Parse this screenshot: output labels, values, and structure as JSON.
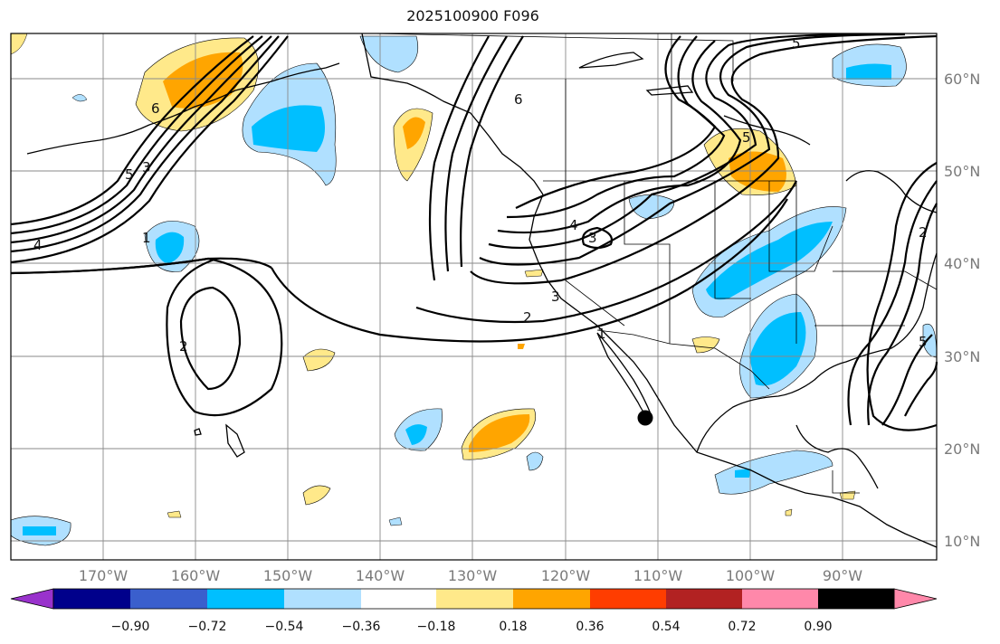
{
  "title": "2025100900 F096",
  "longitude_labels": [
    "170°W",
    "160°W",
    "150°W",
    "140°W",
    "130°W",
    "120°W",
    "110°W",
    "100°W",
    "90°W"
  ],
  "latitude_labels": [
    "60°N",
    "50°N",
    "40°N",
    "30°N",
    "20°N",
    "10°N"
  ],
  "contour_labels": [
    "4",
    "5",
    "3",
    "6",
    "6",
    "1",
    "2",
    "4",
    "3",
    "3",
    "2",
    "1",
    "5",
    "5",
    "2",
    "5"
  ],
  "colorbar": {
    "ticks": [
      "−0.90",
      "−0.72",
      "−0.54",
      "−0.36",
      "−0.18",
      "0.18",
      "0.36",
      "0.54",
      "0.72",
      "0.90"
    ],
    "colors": [
      "#9932cc",
      "#00008b",
      "#3a5fcd",
      "#00bfff",
      "#b0e0ff",
      "#ffffff",
      "#ffe98a",
      "#ffa500",
      "#ff3d00",
      "#b22222",
      "#ff88aa"
    ]
  },
  "shading_colors": {
    "light_blue": "#b0e0ff",
    "blue": "#00bfff",
    "light_yellow": "#ffe98a",
    "orange": "#ffa500"
  },
  "marker": {
    "label": "black dot"
  }
}
